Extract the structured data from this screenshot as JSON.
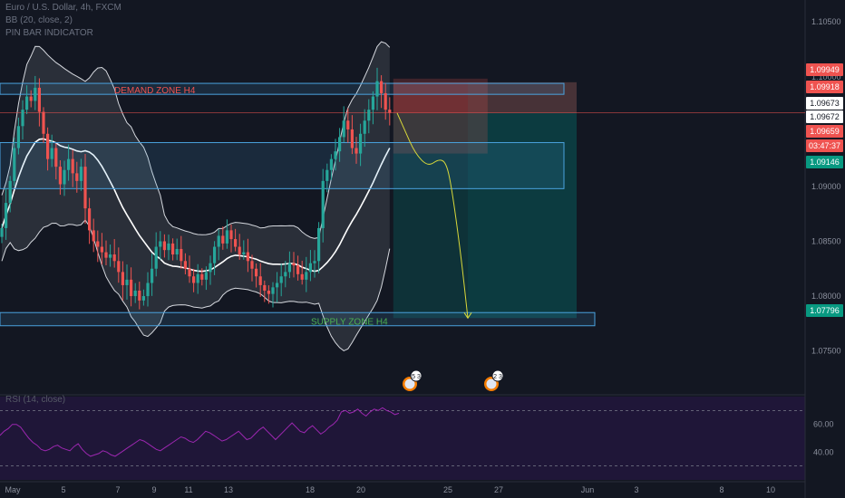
{
  "header": {
    "symbol_line": "Euro / U.S. Dollar, 4h, FXCM",
    "indicator_bb": "BB (20, close, 2)",
    "indicator_pinbar": "PIN BAR INDICATOR",
    "indicator_rsi": "RSI (14, close)"
  },
  "colors": {
    "background": "#131722",
    "up": "#26a69a",
    "down": "#ef5350",
    "zone_border": "#4aa3df",
    "demand_label": "#ef5350",
    "supply_label": "#4caf50",
    "projection": "#d8d83a",
    "rsi": "#9c27b0"
  },
  "annotations": {
    "demand_zone": "DEMAND ZONE H4",
    "supply_zone": "SUPPLY ZONE H4",
    "event_badges": [
      "5 3",
      "2 3"
    ]
  },
  "price_tags": [
    {
      "value": "1.09949",
      "color": "#ef5350"
    },
    {
      "value": "1.09918",
      "color": "#ef5350"
    },
    {
      "value": "1.09673",
      "color": "#ffffff"
    },
    {
      "value": "1.09672",
      "color": "#ffffff"
    },
    {
      "value": "1.09659",
      "color": "#ef5350"
    },
    {
      "value": "03:47:37",
      "color": "#ef5350"
    },
    {
      "value": "1.09146",
      "color": "#089981"
    },
    {
      "value": "1.07796",
      "color": "#089981"
    }
  ],
  "chart_data": [
    {
      "type": "candlestick",
      "symbol": "Euro / U.S. Dollar, 4h, FXCM",
      "y_ticks": [
        "1.10500",
        "1.10000",
        "1.09500",
        "1.09000",
        "1.08500",
        "1.08000",
        "1.07500"
      ],
      "ylim": [
        1.0715,
        1.107
      ],
      "x_ticks": [
        "May",
        "5",
        "7",
        "9",
        "11",
        "13",
        "18",
        "20",
        "25",
        "27",
        "Jun",
        "3",
        "8",
        "10"
      ],
      "close": [
        1.0862,
        1.0885,
        1.0905,
        1.0935,
        1.0955,
        1.097,
        1.0982,
        1.0978,
        1.099,
        1.0968,
        1.0948,
        1.0925,
        1.0935,
        1.0918,
        1.0902,
        1.0915,
        1.0925,
        1.0912,
        1.0905,
        1.0918,
        1.088,
        1.086,
        1.085,
        1.0845,
        1.084,
        1.0835,
        1.0838,
        1.0832,
        1.0822,
        1.081,
        1.0815,
        1.08,
        1.0805,
        1.0796,
        1.08,
        1.0812,
        1.0825,
        1.0845,
        1.085,
        1.0842,
        1.0848,
        1.0838,
        1.0843,
        1.0832,
        1.0825,
        1.0818,
        1.0812,
        1.082,
        1.0815,
        1.0822,
        1.083,
        1.0845,
        1.0855,
        1.0848,
        1.086,
        1.0852,
        1.0845,
        1.0838,
        1.084,
        1.0832,
        1.0825,
        1.0818,
        1.081,
        1.0805,
        1.0802,
        1.0808,
        1.0812,
        1.0818,
        1.0822,
        1.083,
        1.0828,
        1.082,
        1.0815,
        1.0822,
        1.083,
        1.0832,
        1.0862,
        1.0905,
        1.0915,
        1.0925,
        1.0932,
        1.0945,
        1.096,
        1.0952,
        1.0935,
        1.093,
        1.0948,
        1.096,
        1.097,
        1.0982,
        1.0996,
        1.0985,
        1.097,
        1.0967
      ],
      "up_color": "#26a69a",
      "down_color": "#ef5350",
      "zones": [
        {
          "name": "DEMAND ZONE H4",
          "top": 1.0994,
          "bottom": 1.0984
        },
        {
          "name": "middle zone",
          "top": 1.094,
          "bottom": 1.0898
        },
        {
          "name": "SUPPLY ZONE H4",
          "top": 1.0785,
          "bottom": 1.0773
        }
      ],
      "position_box": {
        "entry": 1.0967,
        "stop": 1.0995,
        "target": 1.078
      },
      "projection": [
        1.0967,
        1.0952,
        1.093,
        1.0918,
        1.0925,
        1.0922,
        1.09,
        1.084,
        1.078
      ]
    },
    {
      "type": "line",
      "indicator": "RSI (14, close)",
      "y_ticks": [
        "60.00",
        "40.00"
      ],
      "ylim": [
        20,
        80
      ],
      "bands": [
        70,
        30
      ],
      "values": [
        52,
        55,
        57,
        60,
        60,
        58,
        54,
        50,
        47,
        45,
        42,
        41,
        42,
        44,
        45,
        43,
        42,
        41,
        44,
        46,
        42,
        39,
        37,
        38,
        39,
        41,
        40,
        38,
        37,
        39,
        41,
        43,
        45,
        47,
        49,
        48,
        46,
        44,
        42,
        41,
        43,
        45,
        47,
        49,
        51,
        50,
        48,
        47,
        49,
        52,
        55,
        54,
        52,
        50,
        48,
        49,
        51,
        53,
        55,
        52,
        49,
        50,
        53,
        56,
        58,
        55,
        52,
        49,
        52,
        55,
        58,
        61,
        58,
        55,
        54,
        57,
        59,
        56,
        53,
        55,
        58,
        60,
        63,
        69,
        70,
        68,
        69,
        71,
        68,
        66,
        69,
        71,
        70,
        72,
        70,
        69,
        67,
        68
      ]
    }
  ]
}
